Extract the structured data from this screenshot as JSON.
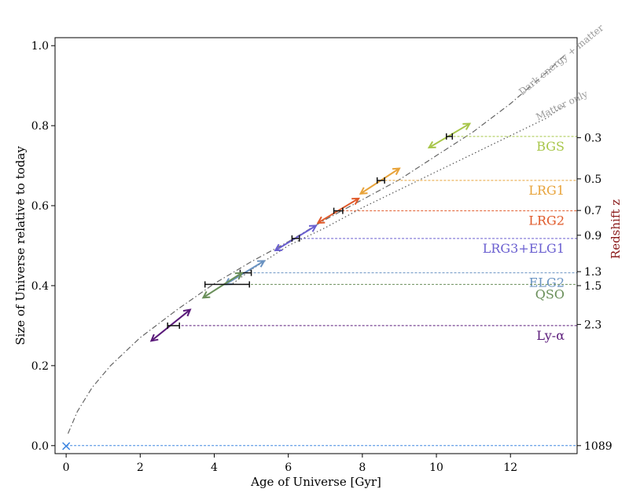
{
  "chart_data": {
    "type": "line",
    "xlabel": "Age of Universe [Gyr]",
    "ylabel": "Size of Universe relative to today",
    "y2label": "Redshift z",
    "xlim": [
      -0.3,
      13.8
    ],
    "ylim": [
      -0.02,
      1.02
    ],
    "xticks": [
      0,
      2,
      4,
      6,
      8,
      10,
      12
    ],
    "yticks": [
      0.0,
      0.2,
      0.4,
      0.6,
      0.8,
      1.0
    ],
    "yticklabels": [
      "0.0",
      "0.2",
      "0.4",
      "0.6",
      "0.8",
      "1.0"
    ],
    "grid": false,
    "curves": [
      {
        "name": "Dark energy + matter",
        "style": "dashdot",
        "color": "#666666",
        "x": [
          0.05,
          0.3,
          0.7,
          1.2,
          2.0,
          3.0,
          4.0,
          5.0,
          6.0,
          7.0,
          8.0,
          9.0,
          10.0,
          11.0,
          12.0,
          13.0,
          13.45
        ],
        "y": [
          0.03,
          0.085,
          0.145,
          0.2,
          0.27,
          0.34,
          0.405,
          0.46,
          0.51,
          0.565,
          0.615,
          0.665,
          0.725,
          0.785,
          0.855,
          0.935,
          0.975
        ]
      },
      {
        "name": "Matter only",
        "style": "dotted",
        "color": "#555555",
        "x": [
          4.5,
          5.0,
          6.0,
          7.0,
          8.0,
          9.0,
          10.0,
          11.0,
          12.0,
          13.0,
          13.45
        ],
        "y": [
          0.405,
          0.44,
          0.5,
          0.545,
          0.595,
          0.64,
          0.685,
          0.73,
          0.775,
          0.82,
          0.85
        ]
      }
    ],
    "redshift_ticks": [
      {
        "label": "0.3",
        "y": 0.77
      },
      {
        "label": "0.5",
        "y": 0.667
      },
      {
        "label": "0.7",
        "y": 0.588
      },
      {
        "label": "0.9",
        "y": 0.526
      },
      {
        "label": "1.3",
        "y": 0.435
      },
      {
        "label": "1.5",
        "y": 0.4
      },
      {
        "label": "2.3",
        "y": 0.303
      },
      {
        "label": "1089",
        "y": 0.0
      }
    ],
    "samples": [
      {
        "name": "BGS",
        "color": "#a8c64a",
        "age": 10.35,
        "size": 0.773,
        "err": 0.08,
        "arrow": [
          9.8,
          0.745,
          10.9,
          0.805
        ]
      },
      {
        "name": "LRG1",
        "color": "#e8a33a",
        "age": 8.5,
        "size": 0.663,
        "err": 0.1,
        "arrow": [
          7.95,
          0.63,
          9.0,
          0.693
        ]
      },
      {
        "name": "LRG2",
        "color": "#e05a2a",
        "age": 7.35,
        "size": 0.587,
        "err": 0.12,
        "arrow": [
          6.8,
          0.557,
          7.9,
          0.618
        ]
      },
      {
        "name": "LRG3+ELG1",
        "color": "#6a5fd0",
        "age": 6.2,
        "size": 0.518,
        "err": 0.1,
        "arrow": [
          5.65,
          0.488,
          6.75,
          0.55
        ]
      },
      {
        "name": "ELG2",
        "color": "#6a93c2",
        "age": 4.85,
        "size": 0.432,
        "err": 0.15,
        "arrow": [
          4.3,
          0.403,
          5.35,
          0.462
        ]
      },
      {
        "name": "QSO",
        "color": "#6a8f5a",
        "age": 4.35,
        "size": 0.403,
        "err": 0.6,
        "arrow": [
          3.7,
          0.37,
          4.75,
          0.432
        ]
      },
      {
        "name": "Ly-α",
        "color": "#5a1a7a",
        "age": 2.9,
        "size": 0.3,
        "err": 0.16,
        "arrow": [
          2.3,
          0.262,
          3.35,
          0.34
        ]
      }
    ],
    "origin_marker": {
      "x": 0.0,
      "y": 0.0,
      "color": "#3d85e0",
      "symbol": "×"
    }
  }
}
